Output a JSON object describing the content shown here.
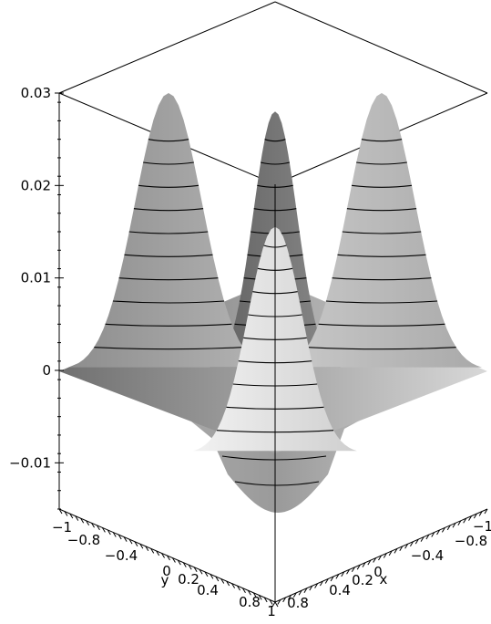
{
  "chart_data": {
    "type": "surface3d",
    "title": "",
    "xlabel": "x",
    "ylabel": "y",
    "zlabel": "",
    "z_range": [
      -0.015,
      0.03
    ],
    "z_ticks": [
      {
        "value": 0.03,
        "label": "0.03"
      },
      {
        "value": 0.02,
        "label": "0.02"
      },
      {
        "value": 0.01,
        "label": "0.01"
      },
      {
        "value": 0,
        "label": "0"
      },
      {
        "value": -0.01,
        "label": "−0.01"
      }
    ],
    "y_ticks": [
      "−1",
      "−0.8",
      "−0.4",
      "0",
      "0.2",
      "0.4",
      "0.8",
      "1"
    ],
    "x_ticks": [
      "−1",
      "−0.8",
      "−0.4",
      "0",
      "0.2",
      "0.4",
      "0.8"
    ],
    "shading": "grayscale",
    "contours": true,
    "peaks": [
      {
        "name": "left-peak",
        "height": 0.03
      },
      {
        "name": "back-peak",
        "height": 0.028
      },
      {
        "name": "right-peak",
        "height": 0.03
      },
      {
        "name": "front-peak",
        "height": 0.0175
      }
    ],
    "trough_depth": -0.0155
  }
}
